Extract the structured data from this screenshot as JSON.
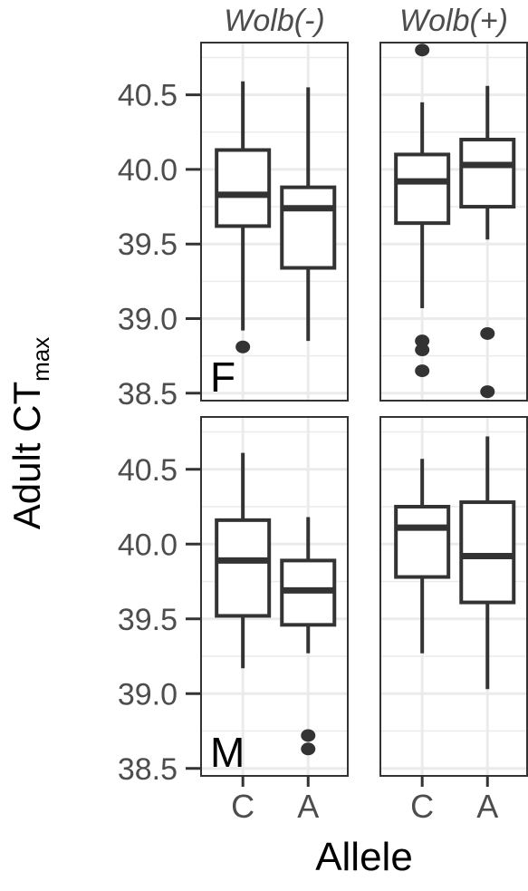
{
  "chart_data": {
    "type": "box",
    "xlabel": "Allele",
    "ylabel_main": "Adult CT",
    "ylabel_sub": "max",
    "categories": [
      "C",
      "A"
    ],
    "column_facets": [
      "Wolb(-)",
      "Wolb(+)"
    ],
    "row_facets": [
      "F",
      "M"
    ],
    "y_ticks": [
      38.5,
      39.0,
      39.5,
      40.0,
      40.5
    ],
    "y_tick_labels": [
      "38.5",
      "39.0",
      "39.5",
      "40.0",
      "40.5"
    ],
    "ylim": [
      38.45,
      40.85
    ],
    "grid": true,
    "colors": {
      "box": "#333333",
      "grid": "#ebebeb",
      "border": "#333333",
      "background": "#ffffff"
    },
    "panels": [
      {
        "row": "F",
        "col": "Wolb(-)",
        "tag": "F",
        "boxes": [
          {
            "cat": "C",
            "whisker_low": 38.92,
            "q1": 39.62,
            "median": 39.83,
            "q3": 40.13,
            "whisker_high": 40.59,
            "outliers": [
              38.81
            ]
          },
          {
            "cat": "A",
            "whisker_low": 38.85,
            "q1": 39.34,
            "median": 39.74,
            "q3": 39.88,
            "whisker_high": 40.55,
            "outliers": []
          }
        ]
      },
      {
        "row": "F",
        "col": "Wolb(+)",
        "tag": "",
        "boxes": [
          {
            "cat": "C",
            "whisker_low": 39.07,
            "q1": 39.64,
            "median": 39.92,
            "q3": 40.1,
            "whisker_high": 40.45,
            "outliers": [
              40.8,
              38.85,
              38.79,
              38.65
            ]
          },
          {
            "cat": "A",
            "whisker_low": 39.53,
            "q1": 39.75,
            "median": 40.03,
            "q3": 40.2,
            "whisker_high": 40.56,
            "outliers": [
              38.9,
              38.51
            ]
          }
        ]
      },
      {
        "row": "M",
        "col": "Wolb(-)",
        "tag": "M",
        "boxes": [
          {
            "cat": "C",
            "whisker_low": 39.17,
            "q1": 39.52,
            "median": 39.89,
            "q3": 40.16,
            "whisker_high": 40.61,
            "outliers": []
          },
          {
            "cat": "A",
            "whisker_low": 39.27,
            "q1": 39.46,
            "median": 39.69,
            "q3": 39.89,
            "whisker_high": 40.18,
            "outliers": [
              38.72,
              38.63
            ]
          }
        ]
      },
      {
        "row": "M",
        "col": "Wolb(+)",
        "tag": "",
        "boxes": [
          {
            "cat": "C",
            "whisker_low": 39.27,
            "q1": 39.78,
            "median": 40.11,
            "q3": 40.25,
            "whisker_high": 40.57,
            "outliers": []
          },
          {
            "cat": "A",
            "whisker_low": 39.03,
            "q1": 39.61,
            "median": 39.92,
            "q3": 40.28,
            "whisker_high": 40.72,
            "outliers": []
          }
        ]
      }
    ]
  }
}
